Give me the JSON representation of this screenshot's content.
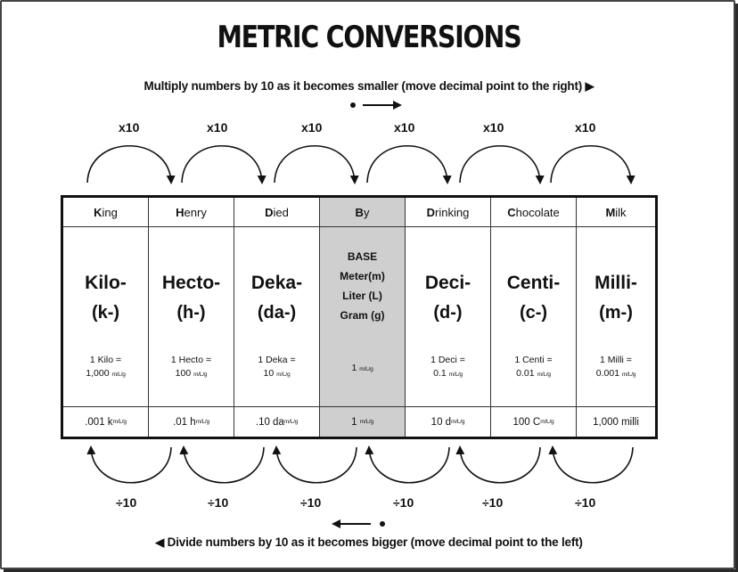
{
  "title": "METRIC CONVERSIONS",
  "multiply_instruction": "Multiply numbers by 10 as it becomes smaller (move decimal point to the right)",
  "divide_instruction": "Divide numbers by 10 as it becomes bigger (move decimal point to the left)",
  "multiply_label": "x10",
  "divide_label": "÷10",
  "units": [
    {
      "mnemonic_initial": "K",
      "mnemonic_rest": "ing",
      "prefix": "Kilo-",
      "abbr": "(k-)",
      "equiv_line1": "1 Kilo =",
      "equiv_line2": "1,000",
      "equiv_unit": "m/L/g",
      "bottom_value": ".001 k",
      "bottom_unit": "m/L/g"
    },
    {
      "mnemonic_initial": "H",
      "mnemonic_rest": "enry",
      "prefix": "Hecto-",
      "abbr": "(h-)",
      "equiv_line1": "1 Hecto =",
      "equiv_line2": "100",
      "equiv_unit": "m/L/g",
      "bottom_value": ".01 h",
      "bottom_unit": "m/L/g"
    },
    {
      "mnemonic_initial": "D",
      "mnemonic_rest": "ied",
      "prefix": "Deka-",
      "abbr": "(da-)",
      "equiv_line1": "1 Deka =",
      "equiv_line2": "10",
      "equiv_unit": "m/L/g",
      "bottom_value": ".10 da",
      "bottom_unit": "m/L/g"
    },
    {
      "mnemonic_initial": "B",
      "mnemonic_rest": "y",
      "base_heading": "BASE",
      "base_meter": "Meter(m)",
      "base_liter": "Liter (L)",
      "base_gram": "Gram (g)",
      "equiv_line2": "1",
      "equiv_unit": "m/L/g",
      "bottom_value": "1",
      "bottom_unit": "m/L/g"
    },
    {
      "mnemonic_initial": "D",
      "mnemonic_rest": "rinking",
      "prefix": "Deci-",
      "abbr": "(d-)",
      "equiv_line1": "1 Deci =",
      "equiv_line2": "0.1",
      "equiv_unit": "m/L/g",
      "bottom_value": "10 d",
      "bottom_unit": "m/L/g"
    },
    {
      "mnemonic_initial": "C",
      "mnemonic_rest": "hocolate",
      "prefix": "Centi-",
      "abbr": "(c-)",
      "equiv_line1": "1 Centi =",
      "equiv_line2": "0.01",
      "equiv_unit": "m/L/g",
      "bottom_value": "100 C",
      "bottom_unit": "m/L/g"
    },
    {
      "mnemonic_initial": "M",
      "mnemonic_rest": "ilk",
      "prefix": "Milli-",
      "abbr": "(m-)",
      "equiv_line1": "1 Milli =",
      "equiv_line2": "0.001",
      "equiv_unit": "m/L/g",
      "bottom_value": "1,000 milli",
      "bottom_unit": ""
    }
  ]
}
